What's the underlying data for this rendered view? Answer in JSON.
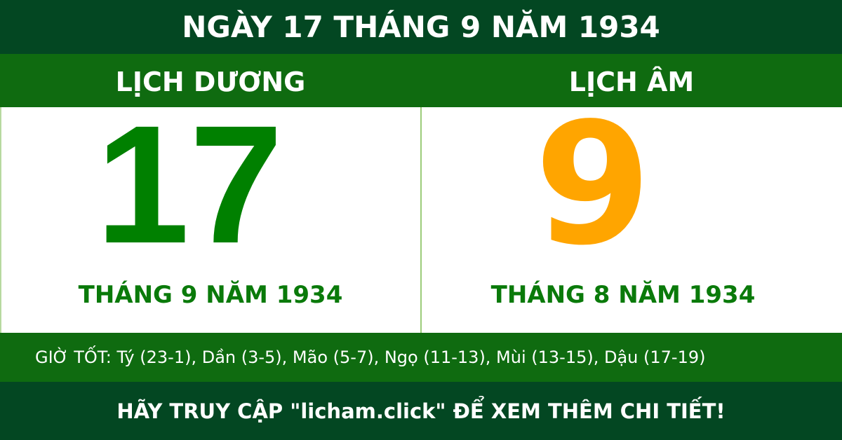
{
  "title": "NGÀY 17 THÁNG 9 NĂM 1934",
  "solar": {
    "label": "LỊCH DƯƠNG",
    "day": "17",
    "month_year": "THÁNG 9 NĂM 1934"
  },
  "lunar": {
    "label": "LỊCH ÂM",
    "day": "9",
    "month_year": "THÁNG 8 NĂM 1934"
  },
  "good_hours": "GIỜ TỐT: Tý (23-1), Dần (3-5), Mão (5-7), Ngọ (11-13), Mùi (13-15), Dậu (17-19)",
  "footer": "HÃY TRUY CẬP \"licham.click\" ĐỂ XEM THÊM CHI TIẾT!",
  "colors": {
    "dark_green": "#034722",
    "green": "#0f6b10",
    "solar_day": "#008000",
    "lunar_day": "#ffa500"
  }
}
